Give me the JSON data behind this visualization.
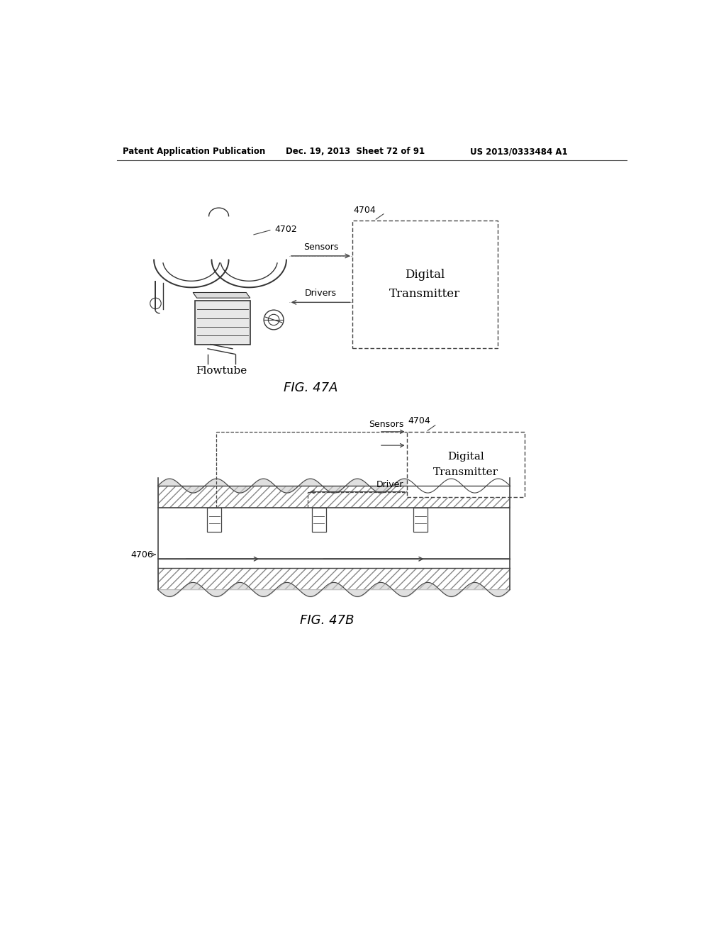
{
  "bg_color": "#ffffff",
  "header_left": "Patent Application Publication",
  "header_mid": "Dec. 19, 2013  Sheet 72 of 91",
  "header_right": "US 2013/0333484 A1",
  "fig47a_label": "FIG. 47A",
  "fig47b_label": "FIG. 47B",
  "flowtube_label": "Flowtube",
  "label_4702": "4702",
  "label_4704a": "4704",
  "label_4704b": "4704",
  "label_4706": "4706",
  "sensors_label_a": "Sensors",
  "drivers_label_a": "Drivers",
  "sensors_label_b": "Sensors",
  "driver_label_b": "Driver",
  "digital_transmitter": "Digital\nTransmitter",
  "line_color": "#444444",
  "text_color": "#000000"
}
